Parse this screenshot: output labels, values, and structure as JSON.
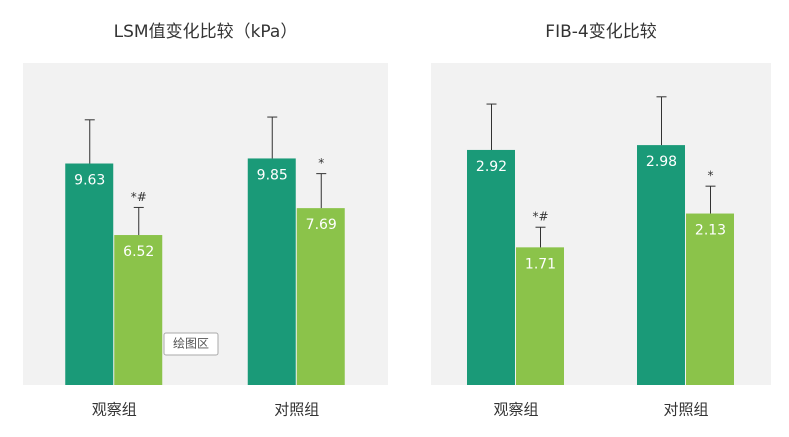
{
  "chart_data": [
    {
      "type": "bar",
      "title": "LSM值变化比较（kPa）",
      "categories": [
        "观察组",
        "对照组"
      ],
      "ylim": [
        0,
        14
      ],
      "tooltip": "绘图区",
      "series": [
        {
          "color": "#1a9a78",
          "values": [
            9.63,
            9.85
          ],
          "errors": [
            1.9,
            1.8
          ],
          "annotations": [
            null,
            null
          ]
        },
        {
          "color": "#8bc34a",
          "values": [
            6.52,
            7.69
          ],
          "errors": [
            1.2,
            1.5
          ],
          "annotations": [
            "*#",
            "*"
          ]
        }
      ]
    },
    {
      "type": "bar",
      "title": "FIB-4变化比较",
      "categories": [
        "观察组",
        "对照组"
      ],
      "ylim": [
        0,
        4
      ],
      "series": [
        {
          "color": "#1a9a78",
          "values": [
            2.92,
            2.98
          ],
          "errors": [
            0.57,
            0.6
          ],
          "annotations": [
            null,
            null
          ]
        },
        {
          "color": "#8bc34a",
          "values": [
            1.71,
            2.13
          ],
          "errors": [
            0.25,
            0.34
          ],
          "annotations": [
            "*#",
            "*"
          ]
        }
      ]
    }
  ]
}
